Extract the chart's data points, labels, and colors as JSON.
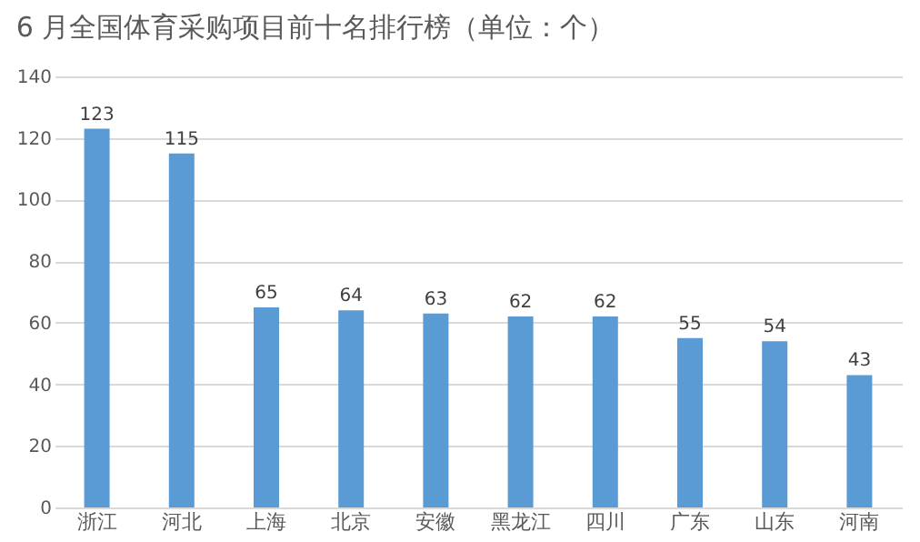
{
  "chart_data": {
    "type": "bar",
    "title": "6 月全国体育采购项目前十名排行榜（单位：个）",
    "categories": [
      "浙江",
      "河北",
      "上海",
      "北京",
      "安徽",
      "黑龙江",
      "四川",
      "广东",
      "山东",
      "河南"
    ],
    "values": [
      123,
      115,
      65,
      64,
      63,
      62,
      62,
      55,
      54,
      43
    ],
    "color": "#5b9bd5",
    "ylim": [
      0,
      140
    ],
    "yticks": [
      0,
      20,
      40,
      60,
      80,
      100,
      120,
      140
    ],
    "grid": "y",
    "data_labels": true
  }
}
